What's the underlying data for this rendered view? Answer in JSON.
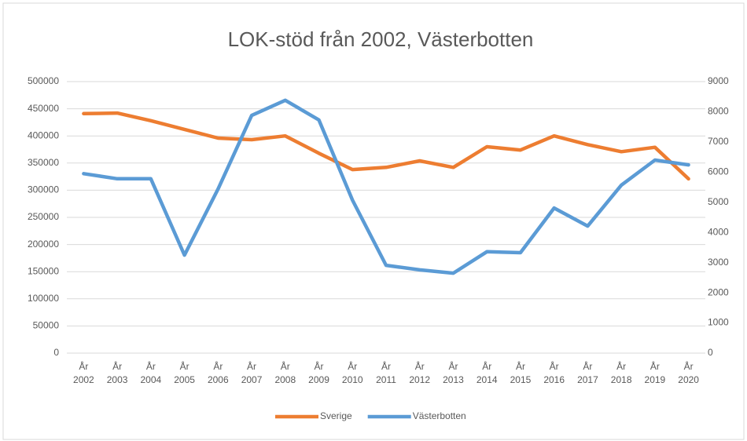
{
  "chart_data": {
    "type": "line",
    "title": "LOK-stöd från 2002, Västerbotten",
    "categories": [
      "År 2002",
      "År 2003",
      "År 2004",
      "År 2005",
      "År 2006",
      "År 2007",
      "År 2008",
      "År 2009",
      "År 2010",
      "År 2011",
      "År 2012",
      "År 2013",
      "År 2014",
      "År 2015",
      "År 2016",
      "År 2017",
      "År 2018",
      "År 2019",
      "År 2020"
    ],
    "series": [
      {
        "name": "Sverige",
        "color": "#ed7d31",
        "values": [
          441000,
          442000,
          428000,
          412000,
          396000,
          393000,
          400000,
          368000,
          338000,
          342000,
          354000,
          342000,
          380000,
          374000,
          400000,
          384000,
          371000,
          379000,
          321000
        ]
      },
      {
        "name": "Västerbotten",
        "color": "#5b9bd5",
        "axis": "y2",
        "values": [
          5950,
          5780,
          5780,
          3250,
          5440,
          7880,
          8380,
          7730,
          5070,
          2910,
          2760,
          2650,
          3360,
          3330,
          4810,
          4210,
          5570,
          6400,
          6240
        ]
      }
    ],
    "ylim": [
      0,
      500000
    ],
    "yticks": [
      0,
      50000,
      100000,
      150000,
      200000,
      250000,
      300000,
      350000,
      400000,
      450000,
      500000
    ],
    "y2lim": [
      0,
      9000
    ],
    "y2ticks": [
      0,
      1000,
      2000,
      3000,
      4000,
      5000,
      6000,
      7000,
      8000,
      9000
    ],
    "grid": true,
    "legend": "bottom"
  }
}
